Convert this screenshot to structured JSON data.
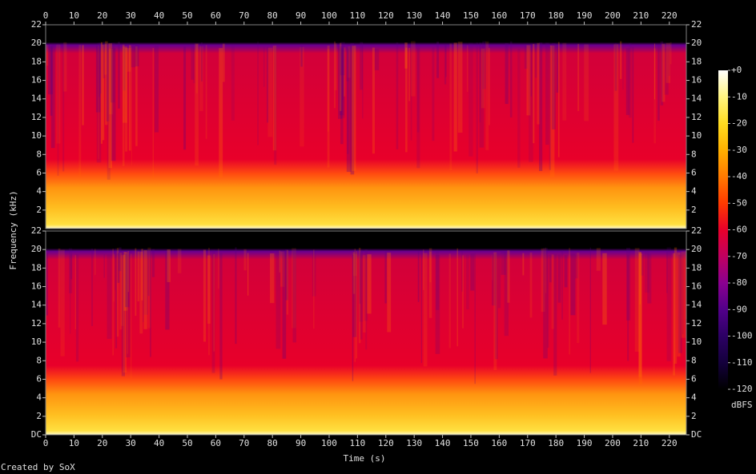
{
  "chart_data": [
    {
      "type": "spectrogram",
      "xlim": [
        0,
        226
      ],
      "ylim": [
        0,
        22
      ],
      "xticks": [
        0,
        10,
        20,
        30,
        40,
        50,
        60,
        70,
        80,
        90,
        100,
        110,
        120,
        130,
        140,
        150,
        160,
        170,
        180,
        190,
        200,
        210,
        220
      ],
      "yticks": [
        2,
        4,
        6,
        8,
        10,
        12,
        14,
        16,
        18,
        20,
        22
      ],
      "xaxis_side": "top"
    },
    {
      "type": "spectrogram",
      "xlim": [
        0,
        226
      ],
      "ylim": [
        0,
        22
      ],
      "xticks": [
        0,
        10,
        20,
        30,
        40,
        50,
        60,
        70,
        80,
        90,
        100,
        110,
        120,
        130,
        140,
        150,
        160,
        170,
        180,
        190,
        200,
        210,
        220
      ],
      "yticks": [
        {
          "value": 0,
          "label": "DC"
        },
        2,
        4,
        6,
        8,
        10,
        12,
        14,
        16,
        18,
        20,
        22
      ],
      "xaxis_side": "bottom"
    }
  ],
  "x_label": "Time (s)",
  "y_label": "Frequency (kHz)",
  "colorbar": {
    "label": "dBFS",
    "lim": [
      -120,
      0
    ],
    "ticks": [
      {
        "value": 0,
        "label": "+0"
      },
      -10,
      -20,
      -30,
      -40,
      -50,
      -60,
      -70,
      -80,
      -90,
      -100,
      -110,
      -120
    ],
    "colors": [
      "#000000",
      "#14003c",
      "#2c0064",
      "#52008a",
      "#8a0090",
      "#c00060",
      "#e8002a",
      "#ff3a00",
      "#ff7a00",
      "#ffb000",
      "#ffdc20",
      "#fff480",
      "#ffffff"
    ]
  },
  "credit": "Created by SoX"
}
